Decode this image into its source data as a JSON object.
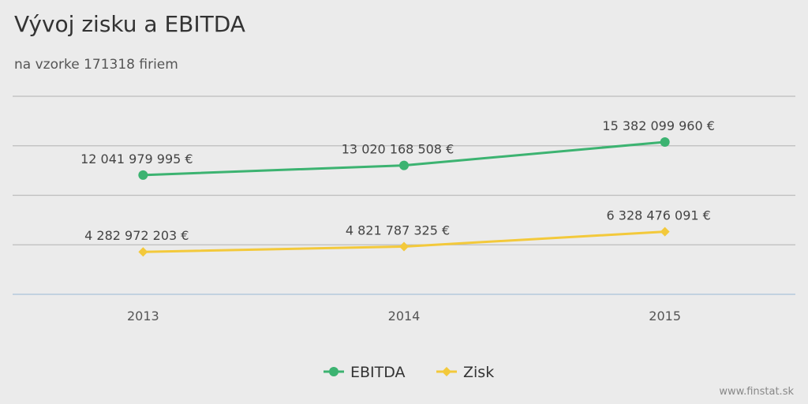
{
  "chart_data": {
    "type": "line",
    "title": "Vývoj zisku a EBITDA",
    "subtitle": "na vzorke 171318 firiem",
    "categories": [
      "2013",
      "2014",
      "2015"
    ],
    "series": [
      {
        "name": "EBITDA",
        "color": "#3cb371",
        "marker": "circle",
        "values": [
          12041979995,
          13020168508,
          15382099960
        ],
        "labels": [
          "12 041 979 995 €",
          "13 020 168 508 €",
          "15 382 099 960 €"
        ]
      },
      {
        "name": "Zisk",
        "color": "#f3c93b",
        "marker": "diamond",
        "values": [
          4282972203,
          4821787325,
          6328476091
        ],
        "labels": [
          "4 282 972 203 €",
          "4 821 787 325 €",
          "6 328 476 091 €"
        ]
      }
    ],
    "ylim": [
      0,
      20000000000
    ],
    "grid": true,
    "legend": "bottom-center"
  },
  "credit": "www.finstat.sk"
}
